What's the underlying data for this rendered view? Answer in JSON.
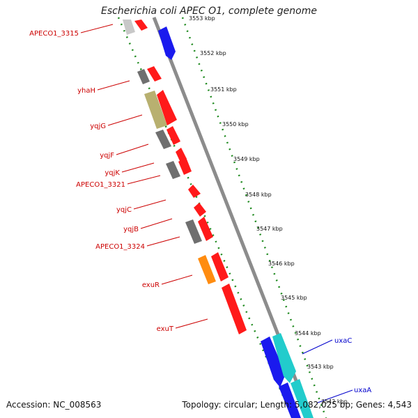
{
  "title": "Escherichia coli APEC O1, complete genome",
  "footer": {
    "accession": "Accession: NC_008563",
    "topology": "Topology: circular; Length: 5,082,025 bp; Genes: 4,543"
  },
  "colors": {
    "forward_cds": "#ff1a1a",
    "reverse_cds": "#1a1aee",
    "gray_feature": "#6f6f6f",
    "olive_feature": "#b8b070",
    "orange_feature": "#ff8c10",
    "cyan_feature": "#22cccc",
    "tick_mark": "#1f8a1f",
    "backbone": "#8c8c8c",
    "left_label": "#cc0000",
    "right_label": "#0000cc"
  },
  "ticks": [
    "3553 kbp",
    "3552 kbp",
    "3551 kbp",
    "3550 kbp",
    "3549 kbp",
    "3548 kbp",
    "3547 kbp",
    "3546 kbp",
    "3545 kbp",
    "3544 kbp",
    "3543 kbp",
    "3542 kbp"
  ],
  "left_labels": [
    "APECO1_3315",
    "yhaH",
    "yqjG",
    "yqjF",
    "yqjK",
    "APECO1_3321",
    "yqjC",
    "yqjB",
    "APECO1_3324",
    "exuR",
    "exuT"
  ],
  "right_labels": [
    "uxaC",
    "uxaA"
  ]
}
